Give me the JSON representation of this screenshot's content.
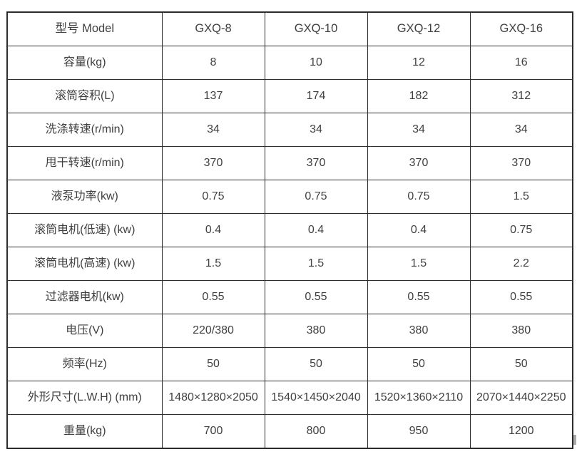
{
  "colors": {
    "border": "#2d2d2d",
    "text": "#3f3f3f",
    "background": "#ffffff"
  },
  "table": {
    "columns": [
      "型号 Model",
      "GXQ-8",
      "GXQ-10",
      "GXQ-12",
      "GXQ-16"
    ],
    "rows": [
      {
        "label": "容量(kg)",
        "values": [
          "8",
          "10",
          "12",
          "16"
        ]
      },
      {
        "label": "滚筒容积(L)",
        "values": [
          "137",
          "174",
          "182",
          "312"
        ]
      },
      {
        "label": "洗涤转速(r/min)",
        "values": [
          "34",
          "34",
          "34",
          "34"
        ]
      },
      {
        "label": "甩干转速(r/min)",
        "values": [
          "370",
          "370",
          "370",
          "370"
        ]
      },
      {
        "label": "液泵功率(kw)",
        "values": [
          "0.75",
          "0.75",
          "0.75",
          "1.5"
        ]
      },
      {
        "label": "滚筒电机(低速) (kw)",
        "values": [
          "0.4",
          "0.4",
          "0.4",
          "0.75"
        ]
      },
      {
        "label": "滚筒电机(高速) (kw)",
        "values": [
          "1.5",
          "1.5",
          "1.5",
          "2.2"
        ]
      },
      {
        "label": "过滤器电机(kw)",
        "values": [
          "0.55",
          "0.55",
          "0.55",
          "0.55"
        ]
      },
      {
        "label": "电压(V)",
        "values": [
          "220/380",
          "380",
          "380",
          "380"
        ]
      },
      {
        "label": "频率(Hz)",
        "values": [
          "50",
          "50",
          "50",
          "50"
        ]
      },
      {
        "label": "外形尺寸(L.W.H) (mm)",
        "values": [
          "1480×1280×2050",
          "1540×1450×2040",
          "1520×1360×2110",
          "2070×1440×2250"
        ]
      },
      {
        "label": "重量(kg)",
        "values": [
          "700",
          "800",
          "950",
          "1200"
        ]
      }
    ]
  }
}
